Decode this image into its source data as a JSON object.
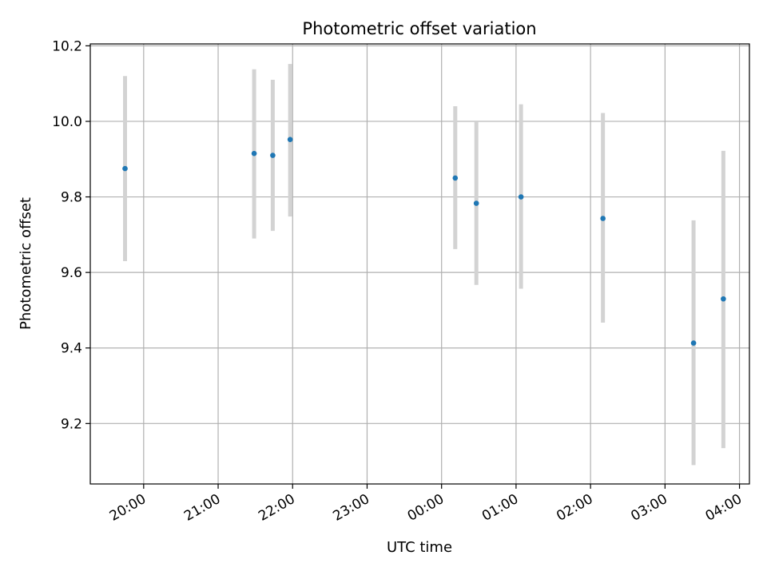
{
  "chart_data": {
    "type": "scatter",
    "title": "Photometric offset variation",
    "xlabel": "UTC time",
    "ylabel": "Photometric offset",
    "grid": true,
    "xlim": [
      "19:17",
      "04:08"
    ],
    "ylim": [
      9.04,
      10.205
    ],
    "x_ticks": [
      "20:00",
      "21:00",
      "22:00",
      "23:00",
      "00:00",
      "01:00",
      "02:00",
      "03:00",
      "04:00"
    ],
    "y_ticks": [
      9.2,
      9.4,
      9.6,
      9.8,
      10.0,
      10.2
    ],
    "y_tick_labels": [
      "9.2",
      "9.4",
      "9.6",
      "9.8",
      "10.0",
      "10.2"
    ],
    "point_color": "#1f77b4",
    "errorbar_color": "#d3d3d3",
    "points": [
      {
        "x": "19:45",
        "y": 9.875,
        "err_low": 9.63,
        "err_high": 10.12
      },
      {
        "x": "21:29",
        "y": 9.915,
        "err_low": 9.69,
        "err_high": 10.138
      },
      {
        "x": "21:44",
        "y": 9.91,
        "err_low": 9.71,
        "err_high": 10.11
      },
      {
        "x": "21:58",
        "y": 9.952,
        "err_low": 9.748,
        "err_high": 10.152
      },
      {
        "x": "00:11",
        "y": 9.85,
        "err_low": 9.662,
        "err_high": 10.04
      },
      {
        "x": "00:28",
        "y": 9.783,
        "err_low": 9.567,
        "err_high": 10.0
      },
      {
        "x": "01:04",
        "y": 9.8,
        "err_low": 9.557,
        "err_high": 10.045
      },
      {
        "x": "02:10",
        "y": 9.743,
        "err_low": 9.467,
        "err_high": 10.022
      },
      {
        "x": "03:23",
        "y": 9.413,
        "err_low": 9.09,
        "err_high": 9.738
      },
      {
        "x": "03:47",
        "y": 9.53,
        "err_low": 9.135,
        "err_high": 9.922
      }
    ]
  }
}
